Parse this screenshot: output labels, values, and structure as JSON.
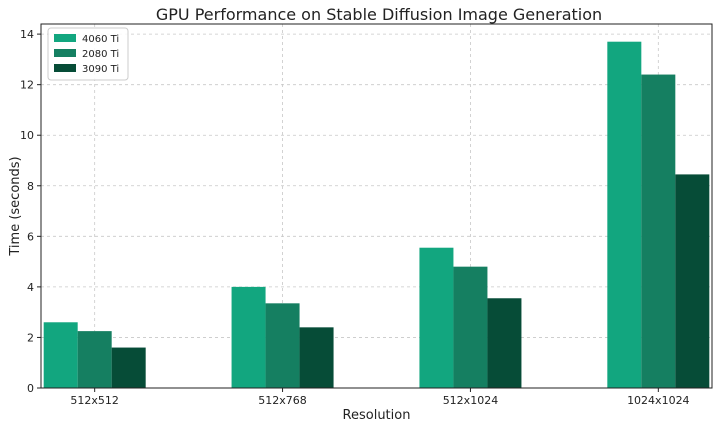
{
  "chart_data": {
    "type": "bar",
    "title": "GPU Performance on Stable Diffusion Image Generation",
    "xlabel": "Resolution",
    "ylabel": "Time (seconds)",
    "categories": [
      "512x512",
      "512x768",
      "512x1024",
      "1024x1024"
    ],
    "series": [
      {
        "name": "4060 Ti",
        "color": "#12a67f",
        "values": [
          2.6,
          4.0,
          5.55,
          13.7
        ]
      },
      {
        "name": "2080 Ti",
        "color": "#157f61",
        "values": [
          2.25,
          3.35,
          4.8,
          12.4
        ]
      },
      {
        "name": "3090 Ti",
        "color": "#064c37",
        "values": [
          1.6,
          2.4,
          3.55,
          8.45
        ]
      }
    ],
    "ylim": [
      0,
      14.4
    ],
    "yticks": [
      "0",
      "2",
      "4",
      "6",
      "8",
      "10",
      "12",
      "14"
    ],
    "grid": true,
    "legend_position": "top-left"
  }
}
